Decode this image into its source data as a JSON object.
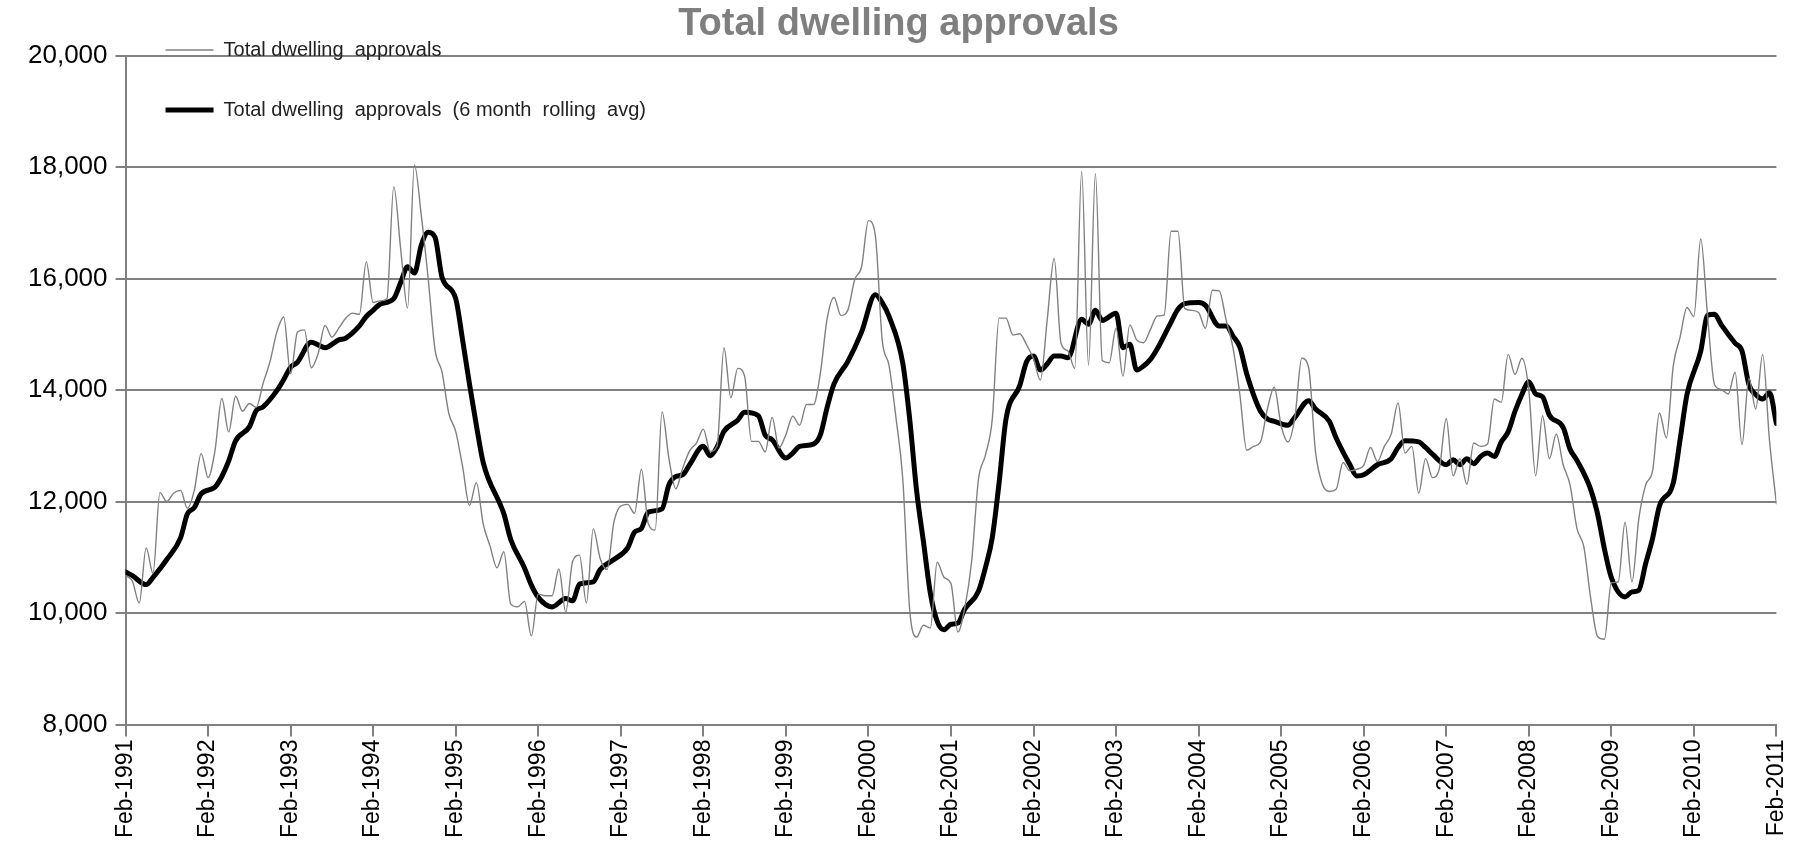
{
  "chart_data": {
    "type": "line",
    "title": "Total dwelling approvals",
    "x": [
      "1991-02",
      "1991-03",
      "1991-04",
      "1991-05",
      "1991-06",
      "1991-07",
      "1991-08",
      "1991-09",
      "1991-10",
      "1991-11",
      "1991-12",
      "1992-01",
      "1992-02",
      "1992-03",
      "1992-04",
      "1992-05",
      "1992-06",
      "1992-07",
      "1992-08",
      "1992-09",
      "1992-10",
      "1992-11",
      "1992-12",
      "1993-01",
      "1993-02",
      "1993-03",
      "1993-04",
      "1993-05",
      "1993-06",
      "1993-07",
      "1993-08",
      "1993-09",
      "1993-10",
      "1993-11",
      "1993-12",
      "1994-01",
      "1994-02",
      "1994-03",
      "1994-04",
      "1994-05",
      "1994-06",
      "1994-07",
      "1994-08",
      "1994-09",
      "1994-10",
      "1994-11",
      "1994-12",
      "1995-01",
      "1995-02",
      "1995-03",
      "1995-04",
      "1995-05",
      "1995-06",
      "1995-07",
      "1995-08",
      "1995-09",
      "1995-10",
      "1995-11",
      "1995-12",
      "1996-01",
      "1996-02",
      "1996-03",
      "1996-04",
      "1996-05",
      "1996-06",
      "1996-07",
      "1996-08",
      "1996-09",
      "1996-10",
      "1996-11",
      "1996-12",
      "1997-01",
      "1997-02",
      "1997-03",
      "1997-04",
      "1997-05",
      "1997-06",
      "1997-07",
      "1997-08",
      "1997-09",
      "1997-10",
      "1997-11",
      "1997-12",
      "1998-01",
      "1998-02",
      "1998-03",
      "1998-04",
      "1998-05",
      "1998-06",
      "1998-07",
      "1998-08",
      "1998-09",
      "1998-10",
      "1998-11",
      "1998-12",
      "1999-01",
      "1999-02",
      "1999-03",
      "1999-04",
      "1999-05",
      "1999-06",
      "1999-07",
      "1999-08",
      "1999-09",
      "1999-10",
      "1999-11",
      "1999-12",
      "2000-01",
      "2000-02",
      "2000-03",
      "2000-04",
      "2000-05",
      "2000-06",
      "2000-07",
      "2000-08",
      "2000-09",
      "2000-10",
      "2000-11",
      "2000-12",
      "2001-01",
      "2001-02",
      "2001-03",
      "2001-04",
      "2001-05",
      "2001-06",
      "2001-07",
      "2001-08",
      "2001-09",
      "2001-10",
      "2001-11",
      "2001-12",
      "2002-01",
      "2002-02",
      "2002-03",
      "2002-04",
      "2002-05",
      "2002-06",
      "2002-07",
      "2002-08",
      "2002-09",
      "2002-10",
      "2002-11",
      "2002-12",
      "2003-01",
      "2003-02",
      "2003-03",
      "2003-04",
      "2003-05",
      "2003-06",
      "2003-07",
      "2003-08",
      "2003-09",
      "2003-10",
      "2003-11",
      "2003-12",
      "2004-01",
      "2004-02",
      "2004-03",
      "2004-04",
      "2004-05",
      "2004-06",
      "2004-07",
      "2004-08",
      "2004-09",
      "2004-10",
      "2004-11",
      "2004-12",
      "2005-01",
      "2005-02",
      "2005-03",
      "2005-04",
      "2005-05",
      "2005-06",
      "2005-07",
      "2005-08",
      "2005-09",
      "2005-10",
      "2005-11",
      "2005-12",
      "2006-01",
      "2006-02",
      "2006-03",
      "2006-04",
      "2006-05",
      "2006-06",
      "2006-07",
      "2006-08",
      "2006-09",
      "2006-10",
      "2006-11",
      "2006-12",
      "2007-01",
      "2007-02",
      "2007-03",
      "2007-04",
      "2007-05",
      "2007-06",
      "2007-07",
      "2007-08",
      "2007-09",
      "2007-10",
      "2007-11",
      "2007-12",
      "2008-01",
      "2008-02",
      "2008-03",
      "2008-04",
      "2008-05",
      "2008-06",
      "2008-07",
      "2008-08",
      "2008-09",
      "2008-10",
      "2008-11",
      "2008-12",
      "2009-01",
      "2009-02",
      "2009-03",
      "2009-04",
      "2009-05",
      "2009-06",
      "2009-07",
      "2009-08",
      "2009-09",
      "2009-10",
      "2009-11",
      "2009-12",
      "2010-01",
      "2010-02",
      "2010-03",
      "2010-04",
      "2010-05",
      "2010-06",
      "2010-07",
      "2010-08",
      "2010-09",
      "2010-10",
      "2010-11",
      "2010-12",
      "2011-01",
      "2011-02"
    ],
    "series": [
      {
        "name": "Total dwelling  approvals",
        "color": "#808080",
        "values": [
          10670,
          10570,
          10180,
          11170,
          10710,
          12160,
          12000,
          12150,
          12200,
          11880,
          12200,
          12860,
          12430,
          12910,
          13850,
          13250,
          13890,
          13620,
          13760,
          13690,
          14120,
          14510,
          15040,
          15310,
          14290,
          15040,
          15080,
          14400,
          14650,
          15160,
          14950,
          15110,
          15290,
          15380,
          15360,
          16300,
          15570,
          15600,
          15640,
          17650,
          16530,
          15470,
          18040,
          17130,
          16000,
          14720,
          14330,
          13580,
          13260,
          12630,
          11930,
          12340,
          11600,
          11200,
          10810,
          11100,
          10160,
          10110,
          10210,
          9590,
          10340,
          10310,
          10310,
          10790,
          10020,
          10930,
          11040,
          10180,
          11510,
          10980,
          10780,
          11630,
          11920,
          11950,
          11790,
          12580,
          11600,
          11490,
          13610,
          12770,
          12230,
          12600,
          12910,
          13050,
          13300,
          12900,
          13000,
          14760,
          13860,
          14390,
          14250,
          13080,
          13080,
          12890,
          13510,
          12960,
          13200,
          13530,
          13370,
          13740,
          13740,
          14290,
          15280,
          15660,
          15340,
          15430,
          15980,
          16210,
          17040,
          16780,
          14900,
          14440,
          13510,
          12400,
          10060,
          9570,
          9780,
          9730,
          10910,
          10640,
          10530,
          9660,
          10090,
          10920,
          12400,
          12830,
          13470,
          15290,
          15290,
          14990,
          15010,
          14810,
          14560,
          14180,
          15270,
          16360,
          14840,
          14700,
          14390,
          17920,
          14450,
          17880,
          14530,
          14490,
          15110,
          14250,
          15170,
          14900,
          14850,
          15090,
          15330,
          15350,
          16850,
          16850,
          15460,
          15430,
          15390,
          15110,
          15790,
          15780,
          15260,
          14760,
          13920,
          12920,
          12990,
          13070,
          13660,
          14050,
          13360,
          13070,
          13510,
          14570,
          14400,
          12890,
          12310,
          12180,
          12220,
          12700,
          12550,
          12580,
          12650,
          12970,
          12720,
          12990,
          13210,
          13770,
          12870,
          12990,
          12150,
          12770,
          12430,
          12590,
          13490,
          12460,
          12770,
          12310,
          13050,
          12990,
          13030,
          13840,
          13780,
          14640,
          14280,
          14570,
          14010,
          12460,
          13540,
          12770,
          13210,
          12660,
          12300,
          11520,
          11190,
          10270,
          9580,
          9530,
          10540,
          10560,
          11630,
          10560,
          11690,
          12300,
          12550,
          13590,
          13140,
          14430,
          14950,
          15480,
          15320,
          16710,
          15320,
          14100,
          14010,
          13930,
          14320,
          13020,
          14210,
          13660,
          14640,
          13090,
          11960
        ]
      },
      {
        "name": "Total dwelling  approvals  (6 month  rolling  avg)",
        "color": "#000000",
        "x": [
          "1991-02",
          "1991-03",
          "1991-05",
          "1991-06",
          "1991-08",
          "1991-10",
          "1991-11",
          "1991-12",
          "1992-01",
          "1992-03",
          "1992-04",
          "1992-05",
          "1992-06",
          "1992-08",
          "1992-09",
          "1992-10",
          "1992-12",
          "1993-01",
          "1993-02",
          "1993-03",
          "1993-05",
          "1993-06",
          "1993-07",
          "1993-09",
          "1993-10",
          "1993-12",
          "1994-01",
          "1994-02",
          "1994-03",
          "1994-05",
          "1994-06",
          "1994-07",
          "1994-08",
          "1994-09",
          "1994-10",
          "1994-11",
          "1994-12",
          "1995-02",
          "1995-03",
          "1995-04",
          "1995-05",
          "1995-06",
          "1995-09",
          "1995-10",
          "1995-12",
          "1996-01",
          "1996-02",
          "1996-04",
          "1996-06",
          "1996-07",
          "1996-08",
          "1996-10",
          "1996-11",
          "1997-01",
          "1997-03",
          "1997-04",
          "1997-05",
          "1997-06",
          "1997-08",
          "1997-09",
          "1997-10",
          "1997-11",
          "1997-12",
          "1998-02",
          "1998-03",
          "1998-04",
          "1998-05",
          "1998-07",
          "1998-08",
          "1998-10",
          "1998-11",
          "1998-12",
          "1999-02",
          "1999-03",
          "1999-04",
          "1999-06",
          "1999-07",
          "1999-08",
          "1999-09",
          "1999-11",
          "2000-01",
          "2000-03",
          "2000-04",
          "2000-05",
          "2000-07",
          "2000-08",
          "2000-09",
          "2000-10",
          "2000-11",
          "2000-12",
          "2001-01",
          "2001-02",
          "2001-03",
          "2001-04",
          "2001-06",
          "2001-07",
          "2001-08",
          "2001-09",
          "2001-10",
          "2001-12",
          "2002-01",
          "2002-02",
          "2002-03",
          "2002-04",
          "2002-05",
          "2002-06",
          "2002-07",
          "2002-09",
          "2002-10",
          "2002-11",
          "2002-12",
          "2003-02",
          "2003-03",
          "2003-04",
          "2003-05",
          "2003-06",
          "2003-07",
          "2003-08",
          "2003-10",
          "2003-11",
          "2003-12",
          "2004-02",
          "2004-03",
          "2004-05",
          "2004-06",
          "2004-07",
          "2004-08",
          "2004-09",
          "2004-11",
          "2004-12",
          "2005-01",
          "2005-03",
          "2005-04",
          "2005-06",
          "2005-07",
          "2005-09",
          "2005-10",
          "2005-12",
          "2006-01",
          "2006-02",
          "2006-04",
          "2006-06",
          "2006-07",
          "2006-08",
          "2006-10",
          "2006-11",
          "2006-12",
          "2007-02",
          "2007-03",
          "2007-04",
          "2007-05",
          "2007-06",
          "2007-07",
          "2007-08",
          "2007-09",
          "2007-10",
          "2007-11",
          "2007-12",
          "2008-01",
          "2008-02",
          "2008-03",
          "2008-04",
          "2008-05",
          "2008-07",
          "2008-08",
          "2008-09",
          "2008-11",
          "2008-12",
          "2009-01",
          "2009-02",
          "2009-04",
          "2009-05",
          "2009-06",
          "2009-07",
          "2009-08",
          "2009-09",
          "2009-11",
          "2009-12",
          "2010-01",
          "2010-03",
          "2010-04",
          "2010-05",
          "2010-06",
          "2010-08",
          "2010-09",
          "2010-10",
          "2010-11",
          "2010-12",
          "2011-01",
          "2011-02"
        ],
        "values": [
          10740,
          10670,
          10510,
          10640,
          10960,
          11350,
          11780,
          11890,
          12140,
          12260,
          12450,
          12730,
          13090,
          13340,
          13630,
          13700,
          13990,
          14190,
          14410,
          14500,
          14860,
          14810,
          14760,
          14900,
          14930,
          15150,
          15320,
          15430,
          15540,
          15640,
          15930,
          16210,
          16100,
          16600,
          16830,
          16740,
          16030,
          15640,
          14900,
          14110,
          13370,
          12700,
          11780,
          11320,
          10810,
          10500,
          10280,
          10110,
          10260,
          10220,
          10520,
          10560,
          10780,
          10960,
          11170,
          11450,
          11520,
          11810,
          11870,
          12300,
          12450,
          12480,
          12660,
          12990,
          12820,
          12980,
          13260,
          13460,
          13600,
          13540,
          13190,
          13110,
          12780,
          12870,
          12990,
          13030,
          13190,
          13690,
          14110,
          14510,
          15040,
          15710,
          15570,
          15320,
          14480,
          13480,
          12200,
          11280,
          10360,
          9850,
          9700,
          9800,
          9820,
          10070,
          10390,
          10810,
          11350,
          12340,
          13480,
          14080,
          14510,
          14610,
          14360,
          14470,
          14610,
          14610,
          14580,
          15270,
          15180,
          15430,
          15250,
          15380,
          14760,
          14820,
          14360,
          14430,
          14550,
          14740,
          15220,
          15450,
          15550,
          15570,
          15520,
          15150,
          15150,
          14970,
          14770,
          14290,
          13620,
          13480,
          13440,
          13370,
          13510,
          13810,
          13660,
          13440,
          13140,
          12660,
          12460,
          12480,
          12660,
          12770,
          12970,
          13090,
          13070,
          12970,
          12850,
          12660,
          12750,
          12660,
          12770,
          12680,
          12810,
          12870,
          12810,
          13070,
          13250,
          13620,
          13920,
          14150,
          13930,
          13880,
          13550,
          13330,
          12940,
          12740,
          12220,
          11780,
          11150,
          10640,
          10290,
          10380,
          10410,
          10890,
          11340,
          11920,
          12330,
          13110,
          13920,
          14700,
          15340,
          15360,
          15170,
          14840,
          14700,
          14100,
          13920,
          13840,
          13950,
          13400
        ]
      }
    ],
    "xlim": [
      "1991-02",
      "2011-02"
    ],
    "xticks": [
      {
        "value": "1991-02",
        "label": "Feb-1991"
      },
      {
        "value": "1992-02",
        "label": "Feb-1992"
      },
      {
        "value": "1993-02",
        "label": "Feb-1993"
      },
      {
        "value": "1994-02",
        "label": "Feb-1994"
      },
      {
        "value": "1995-02",
        "label": "Feb-1995"
      },
      {
        "value": "1996-02",
        "label": "Feb-1996"
      },
      {
        "value": "1997-02",
        "label": "Feb-1997"
      },
      {
        "value": "1998-02",
        "label": "Feb-1998"
      },
      {
        "value": "1999-02",
        "label": "Feb-1999"
      },
      {
        "value": "2000-02",
        "label": "Feb-2000"
      },
      {
        "value": "2001-02",
        "label": "Feb-2001"
      },
      {
        "value": "2002-02",
        "label": "Feb-2002"
      },
      {
        "value": "2003-02",
        "label": "Feb-2003"
      },
      {
        "value": "2004-02",
        "label": "Feb-2004"
      },
      {
        "value": "2005-02",
        "label": "Feb-2005"
      },
      {
        "value": "2006-02",
        "label": "Feb-2006"
      },
      {
        "value": "2007-02",
        "label": "Feb-2007"
      },
      {
        "value": "2008-02",
        "label": "Feb-2008"
      },
      {
        "value": "2009-02",
        "label": "Feb-2009"
      },
      {
        "value": "2010-02",
        "label": "Feb-2010"
      },
      {
        "value": "2011-02",
        "label": "Feb-2011"
      }
    ],
    "ylim": [
      8000,
      20000
    ],
    "yticks": [
      {
        "value": 8000,
        "label": "8,000"
      },
      {
        "value": 10000,
        "label": "10,000"
      },
      {
        "value": 12000,
        "label": "12,000"
      },
      {
        "value": 14000,
        "label": "14,000"
      },
      {
        "value": 16000,
        "label": "16,000"
      },
      {
        "value": 18000,
        "label": "18,000"
      },
      {
        "value": 20000,
        "label": "20,000"
      }
    ],
    "grid": "y",
    "legend": "top left"
  }
}
